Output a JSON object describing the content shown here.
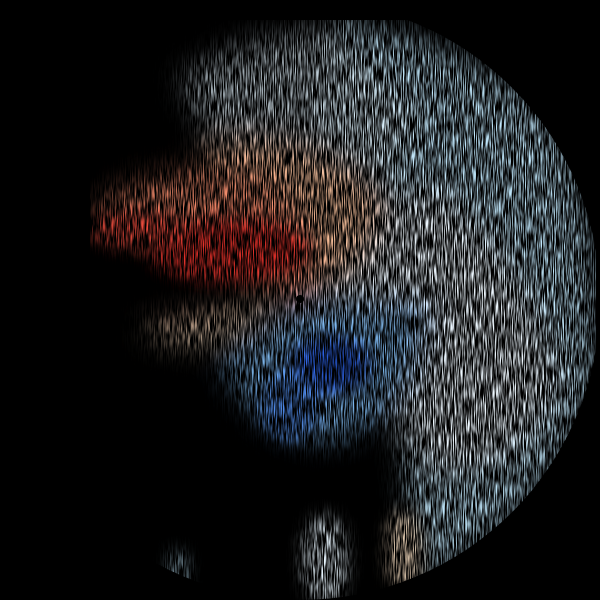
{
  "image": {
    "kind": "doppler-radar-velocity",
    "background": "#000000",
    "colors": {
      "strong_outbound": "#e8322c",
      "moderate_outbound": "#f7a07a",
      "weak_outbound": "#fde2c4",
      "near_zero": "#f4fbff",
      "weak_inbound": "#bfe6fb",
      "moderate_inbound": "#7fbaf0",
      "strong_inbound": "#2a5fe0",
      "radar_site": "#000000"
    }
  }
}
